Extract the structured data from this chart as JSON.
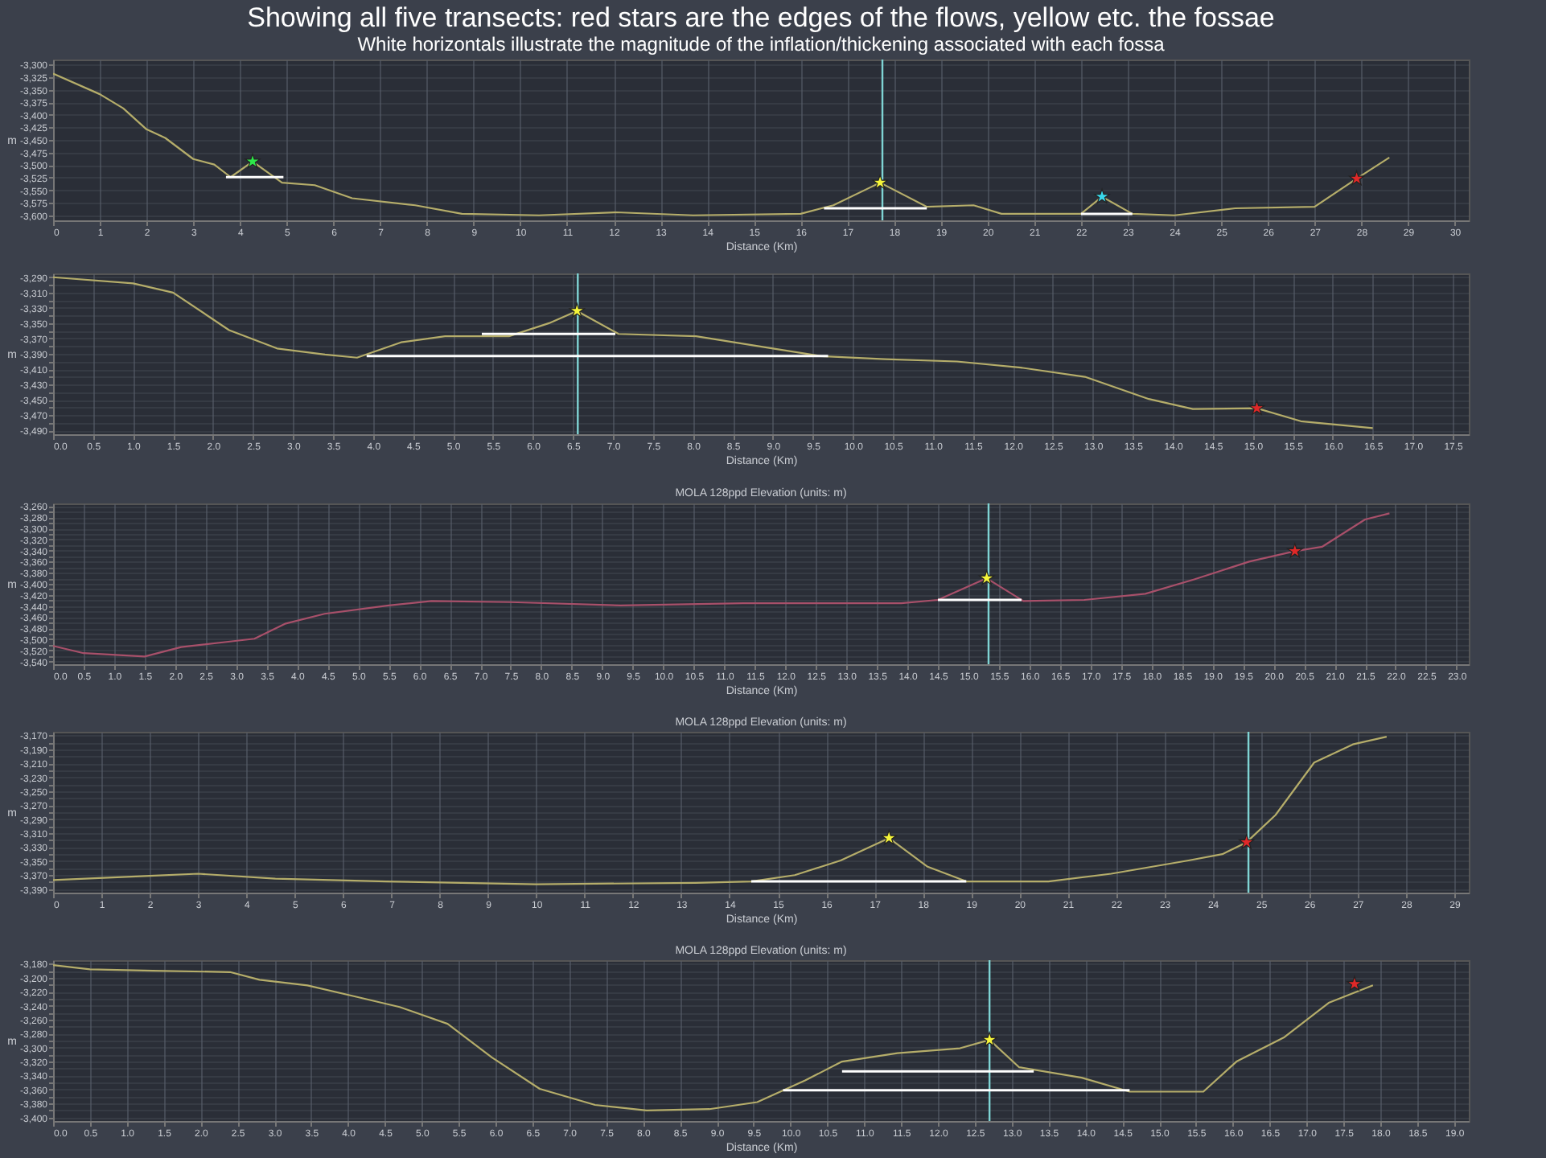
{
  "chart_data": [
    {
      "type": "line",
      "title": "Showing all five transects: red stars are the edges of the flows, yellow etc. the fossae",
      "subtitle": "White horizontals illustrate the magnitude of the inflation/thickening associated with each fossa",
      "xlabel": "Distance (Km)",
      "ylabel": "m",
      "grid": true,
      "xlim": [
        0,
        30.3
      ],
      "xticks": [
        0,
        1,
        2,
        3,
        4,
        5,
        6,
        7,
        8,
        9,
        10,
        11,
        12,
        13,
        14,
        15,
        16,
        17,
        18,
        19,
        20,
        21,
        22,
        23,
        24,
        25,
        26,
        27,
        28,
        29,
        30
      ],
      "ylim": [
        -3610,
        -3290
      ],
      "yticks": [
        {
          "value": -3300,
          "label": "-3,300"
        },
        {
          "value": -3325,
          "label": "-3,325"
        },
        {
          "value": -3350,
          "label": "-3,350"
        },
        {
          "value": -3375,
          "label": "-3,375"
        },
        {
          "value": -3400,
          "label": "-3,400"
        },
        {
          "value": -3425,
          "label": "-3,425"
        },
        {
          "value": -3450,
          "label": "-3,450"
        },
        {
          "value": -3475,
          "label": "-3,475"
        },
        {
          "value": -3500,
          "label": "-3,500"
        },
        {
          "value": -3525,
          "label": "-3,525"
        },
        {
          "value": -3550,
          "label": "-3,550"
        },
        {
          "value": -3575,
          "label": "-3,575"
        },
        {
          "value": -3600,
          "label": "-3,600"
        }
      ],
      "series": [
        {
          "type": "line",
          "color": "#b5ad6a",
          "marker": "none",
          "x": [
            0,
            1,
            1.5,
            2,
            2.4,
            3,
            3.45,
            3.8,
            4.27,
            4.9,
            5.6,
            6.4,
            7.75,
            8.75,
            10.4,
            12.05,
            13.7,
            16,
            16.7,
            17.7,
            18.7,
            19.7,
            20.3,
            22,
            22.45,
            23.1,
            24,
            25.3,
            27,
            27.9,
            28.6
          ],
          "values": [
            -3318,
            -3359,
            -3387,
            -3429,
            -3446,
            -3488,
            -3499,
            -3524,
            -3493,
            -3535,
            -3540,
            -3566,
            -3580,
            -3597,
            -3600,
            -3594,
            -3600,
            -3597,
            -3580,
            -3535,
            -3583,
            -3580,
            -3597,
            -3597,
            -3563,
            -3597,
            -3600,
            -3586,
            -3583,
            -3527,
            -3485
          ]
        },
        {
          "type": "line",
          "color": "#ffffff",
          "marker": "none",
          "x": [
            3.7,
            4.93
          ],
          "values": [
            -3524,
            -3524
          ]
        },
        {
          "type": "line",
          "color": "#ffffff",
          "marker": "none",
          "x": [
            16.5,
            18.7
          ],
          "values": [
            -3586,
            -3586
          ]
        },
        {
          "type": "line",
          "color": "#ffffff",
          "marker": "none",
          "x": [
            22,
            23.1
          ],
          "values": [
            -3597,
            -3597
          ]
        },
        {
          "type": "scatter",
          "marker": "star",
          "x": [
            4.27,
            17.7,
            22.45,
            27.9
          ],
          "values": [
            -3493,
            -3535,
            -3563,
            -3527
          ],
          "colors": [
            "#2ee84a",
            "#f5f53a",
            "#3ad8ea",
            "#e02828"
          ]
        }
      ],
      "ref_lines": [
        {
          "axis": "x",
          "value": 17.75,
          "color": "#7fd4d4"
        }
      ]
    },
    {
      "type": "line",
      "xlabel": "Distance (Km)",
      "ylabel": "m",
      "grid": true,
      "xlim": [
        0,
        17.7
      ],
      "xticks": [
        {
          "value": 0,
          "label": "0.0"
        },
        0.5,
        {
          "value": 1,
          "label": "1.0"
        },
        1.5,
        {
          "value": 2,
          "label": "2.0"
        },
        2.5,
        {
          "value": 3,
          "label": "3.0"
        },
        3.5,
        {
          "value": 4,
          "label": "4.0"
        },
        4.5,
        {
          "value": 5,
          "label": "5.0"
        },
        5.5,
        {
          "value": 6,
          "label": "6.0"
        },
        6.5,
        {
          "value": 7,
          "label": "7.0"
        },
        7.5,
        {
          "value": 8,
          "label": "8.0"
        },
        8.5,
        {
          "value": 9,
          "label": "9.0"
        },
        9.5,
        {
          "value": 10,
          "label": "10.0"
        },
        10.5,
        {
          "value": 11,
          "label": "11.0"
        },
        11.5,
        {
          "value": 12,
          "label": "12.0"
        },
        12.5,
        {
          "value": 13,
          "label": "13.0"
        },
        13.5,
        {
          "value": 14,
          "label": "14.0"
        },
        14.5,
        {
          "value": 15,
          "label": "15.0"
        },
        15.5,
        {
          "value": 16,
          "label": "16.0"
        },
        16.5,
        {
          "value": 17,
          "label": "17.0"
        },
        17.5
      ],
      "ylim": [
        -3495,
        -3285
      ],
      "yticks": [
        {
          "value": -3290,
          "label": "-3,290"
        },
        {
          "value": -3300,
          "label": null
        },
        {
          "value": -3310,
          "label": "-3,310"
        },
        {
          "value": -3320,
          "label": null
        },
        {
          "value": -3330,
          "label": "-3,330"
        },
        {
          "value": -3340,
          "label": null
        },
        {
          "value": -3350,
          "label": "-3,350"
        },
        {
          "value": -3360,
          "label": null
        },
        {
          "value": -3370,
          "label": "-3,370"
        },
        {
          "value": -3380,
          "label": null
        },
        {
          "value": -3390,
          "label": "-3,390"
        },
        {
          "value": -3400,
          "label": null
        },
        {
          "value": -3410,
          "label": "-3,410"
        },
        {
          "value": -3420,
          "label": null
        },
        {
          "value": -3430,
          "label": "-3,430"
        },
        {
          "value": -3440,
          "label": null
        },
        {
          "value": -3450,
          "label": "-3,450"
        },
        {
          "value": -3460,
          "label": null
        },
        {
          "value": -3470,
          "label": "-3,470"
        },
        {
          "value": -3480,
          "label": null
        },
        {
          "value": -3490,
          "label": "-3,490"
        }
      ],
      "series": [
        {
          "type": "line",
          "color": "#b5ad6a",
          "marker": "none",
          "x": [
            0,
            1,
            1.5,
            2.2,
            2.8,
            3.4,
            3.8,
            4.35,
            4.9,
            5.7,
            6.2,
            6.55,
            7.07,
            8.04,
            9,
            9.6,
            10.4,
            11.3,
            12.1,
            12.9,
            13.7,
            14.25,
            15.05,
            15.6,
            16.5
          ],
          "values": [
            -3290,
            -3298,
            -3310,
            -3359,
            -3383,
            -3391,
            -3395,
            -3375,
            -3367,
            -3367,
            -3350,
            -3334,
            -3364,
            -3367,
            -3383,
            -3393,
            -3397,
            -3400,
            -3408,
            -3420,
            -3449,
            -3462,
            -3461,
            -3478,
            -3487
          ]
        },
        {
          "type": "line",
          "color": "#ffffff",
          "marker": "none",
          "x": [
            5.36,
            7.03
          ],
          "values": [
            -3364,
            -3364
          ]
        },
        {
          "type": "line",
          "color": "#ffffff",
          "marker": "none",
          "x": [
            3.92,
            9.69
          ],
          "values": [
            -3393,
            -3393
          ]
        },
        {
          "type": "scatter",
          "marker": "star",
          "x": [
            6.55,
            15.05
          ],
          "values": [
            -3334,
            -3461
          ],
          "colors": [
            "#f5f53a",
            "#e02828"
          ]
        }
      ],
      "ref_lines": [
        {
          "axis": "x",
          "value": 6.56,
          "color": "#7fd4d4"
        }
      ]
    },
    {
      "type": "line",
      "title": "MOLA 128ppd Elevation (units: m)",
      "xlabel": "Distance (Km)",
      "ylabel": "m",
      "grid": true,
      "xlim": [
        0,
        23.2
      ],
      "xticks": [
        {
          "value": 0,
          "label": "0.0"
        },
        0.5,
        {
          "value": 1,
          "label": "1.0"
        },
        1.5,
        {
          "value": 2,
          "label": "2.0"
        },
        2.5,
        {
          "value": 3,
          "label": "3.0"
        },
        3.5,
        {
          "value": 4,
          "label": "4.0"
        },
        4.5,
        {
          "value": 5,
          "label": "5.0"
        },
        5.5,
        {
          "value": 6,
          "label": "6.0"
        },
        6.5,
        {
          "value": 7,
          "label": "7.0"
        },
        7.5,
        {
          "value": 8,
          "label": "8.0"
        },
        8.5,
        {
          "value": 9,
          "label": "9.0"
        },
        9.5,
        {
          "value": 10,
          "label": "10.0"
        },
        10.5,
        {
          "value": 11,
          "label": "11.0"
        },
        11.5,
        {
          "value": 12,
          "label": "12.0"
        },
        12.5,
        {
          "value": 13,
          "label": "13.0"
        },
        13.5,
        {
          "value": 14,
          "label": "14.0"
        },
        14.5,
        {
          "value": 15,
          "label": "15.0"
        },
        15.5,
        {
          "value": 16,
          "label": "16.0"
        },
        16.5,
        {
          "value": 17,
          "label": "17.0"
        },
        17.5,
        {
          "value": 18,
          "label": "18.0"
        },
        18.5,
        {
          "value": 19,
          "label": "19.0"
        },
        19.5,
        {
          "value": 20,
          "label": "20.0"
        },
        20.5,
        {
          "value": 21,
          "label": "21.0"
        },
        21.5,
        {
          "value": 22,
          "label": "22.0"
        },
        22.5,
        {
          "value": 23,
          "label": "23.0"
        }
      ],
      "ylim": [
        -3545,
        -3255
      ],
      "yticks": [
        {
          "value": -3260,
          "label": "-3,260"
        },
        {
          "value": -3270,
          "label": null
        },
        {
          "value": -3280,
          "label": "-3,280"
        },
        {
          "value": -3290,
          "label": null
        },
        {
          "value": -3300,
          "label": "-3,300"
        },
        {
          "value": -3310,
          "label": null
        },
        {
          "value": -3320,
          "label": "-3,320"
        },
        {
          "value": -3330,
          "label": null
        },
        {
          "value": -3340,
          "label": "-3,340"
        },
        {
          "value": -3350,
          "label": null
        },
        {
          "value": -3360,
          "label": "-3,360"
        },
        {
          "value": -3370,
          "label": null
        },
        {
          "value": -3380,
          "label": "-3,380"
        },
        {
          "value": -3390,
          "label": null
        },
        {
          "value": -3400,
          "label": "-3,400"
        },
        {
          "value": -3410,
          "label": null
        },
        {
          "value": -3420,
          "label": "-3,420"
        },
        {
          "value": -3430,
          "label": null
        },
        {
          "value": -3440,
          "label": "-3,440"
        },
        {
          "value": -3450,
          "label": null
        },
        {
          "value": -3460,
          "label": "-3,460"
        },
        {
          "value": -3470,
          "label": null
        },
        {
          "value": -3480,
          "label": "-3,480"
        },
        {
          "value": -3490,
          "label": null
        },
        {
          "value": -3500,
          "label": "-3,500"
        },
        {
          "value": -3510,
          "label": null
        },
        {
          "value": -3520,
          "label": "-3,520"
        },
        {
          "value": -3530,
          "label": null
        },
        {
          "value": -3540,
          "label": "-3,540"
        }
      ],
      "series": [
        {
          "type": "line",
          "color": "#a8506a",
          "marker": "none",
          "x": [
            0,
            0.5,
            1.5,
            2.1,
            2.9,
            3.3,
            3.8,
            4.45,
            5.5,
            6.2,
            7.5,
            9.3,
            11.3,
            12.6,
            13.9,
            14.5,
            15.3,
            15.9,
            16.9,
            17.9,
            18.7,
            19.6,
            20.35,
            20.8,
            21.5,
            21.9
          ],
          "values": [
            -3512,
            -3525,
            -3531,
            -3514,
            -3504,
            -3499,
            -3472,
            -3454,
            -3439,
            -3431,
            -3433,
            -3439,
            -3435,
            -3435,
            -3435,
            -3429,
            -3390,
            -3431,
            -3429,
            -3418,
            -3392,
            -3360,
            -3341,
            -3333,
            -3284,
            -3273
          ]
        },
        {
          "type": "line",
          "color": "#ffffff",
          "marker": "none",
          "x": [
            14.5,
            15.87
          ],
          "values": [
            -3429,
            -3429
          ]
        },
        {
          "type": "scatter",
          "marker": "star",
          "x": [
            15.3,
            20.35
          ],
          "values": [
            -3390,
            -3341
          ],
          "colors": [
            "#f5f53a",
            "#e02828"
          ]
        }
      ],
      "ref_lines": [
        {
          "axis": "x",
          "value": 15.33,
          "color": "#7fd4d4"
        }
      ]
    },
    {
      "type": "line",
      "title": "MOLA 128ppd Elevation (units: m)",
      "xlabel": "Distance (Km)",
      "ylabel": "m",
      "grid": true,
      "xlim": [
        0,
        29.3
      ],
      "xticks": [
        0,
        1,
        2,
        3,
        4,
        5,
        6,
        7,
        8,
        9,
        10,
        11,
        12,
        13,
        14,
        15,
        16,
        17,
        18,
        19,
        20,
        21,
        22,
        23,
        24,
        25,
        26,
        27,
        28,
        29
      ],
      "ylim": [
        -3395,
        -3165
      ],
      "yticks": [
        {
          "value": -3170,
          "label": "-3,170"
        },
        {
          "value": -3180,
          "label": null
        },
        {
          "value": -3190,
          "label": "-3,190"
        },
        {
          "value": -3200,
          "label": null
        },
        {
          "value": -3210,
          "label": "-3,210"
        },
        {
          "value": -3220,
          "label": null
        },
        {
          "value": -3230,
          "label": "-3,230"
        },
        {
          "value": -3240,
          "label": null
        },
        {
          "value": -3250,
          "label": "-3,250"
        },
        {
          "value": -3260,
          "label": null
        },
        {
          "value": -3270,
          "label": "-3,270"
        },
        {
          "value": -3280,
          "label": null
        },
        {
          "value": -3290,
          "label": "-3,290"
        },
        {
          "value": -3300,
          "label": null
        },
        {
          "value": -3310,
          "label": "-3,310"
        },
        {
          "value": -3320,
          "label": null
        },
        {
          "value": -3330,
          "label": "-3,330"
        },
        {
          "value": -3340,
          "label": null
        },
        {
          "value": -3350,
          "label": "-3,350"
        },
        {
          "value": -3360,
          "label": null
        },
        {
          "value": -3370,
          "label": "-3,370"
        },
        {
          "value": -3380,
          "label": null
        },
        {
          "value": -3390,
          "label": "-3,390"
        }
      ],
      "series": [
        {
          "type": "line",
          "color": "#b5ad6a",
          "marker": "none",
          "x": [
            0,
            2,
            3,
            4.6,
            6.9,
            10,
            13.3,
            14.45,
            15.35,
            16.3,
            17.3,
            18.1,
            18.9,
            20.6,
            21.9,
            23.5,
            24.2,
            24.7,
            25.3,
            26.1,
            26.9,
            27.6
          ],
          "values": [
            -3377,
            -3371,
            -3368,
            -3375,
            -3379,
            -3383,
            -3381,
            -3379,
            -3370,
            -3349,
            -3317,
            -3358,
            -3379,
            -3379,
            -3368,
            -3349,
            -3340,
            -3323,
            -3284,
            -3209,
            -3183,
            -3172
          ]
        },
        {
          "type": "line",
          "color": "#ffffff",
          "marker": "none",
          "x": [
            14.45,
            18.9
          ],
          "values": [
            -3379,
            -3379
          ]
        },
        {
          "type": "scatter",
          "marker": "star",
          "x": [
            17.3,
            24.7
          ],
          "values": [
            -3317,
            -3323
          ],
          "colors": [
            "#f5f53a",
            "#e02828"
          ]
        }
      ],
      "ref_lines": [
        {
          "axis": "x",
          "value": 24.74,
          "color": "#7fd4d4"
        }
      ]
    },
    {
      "type": "line",
      "title": "MOLA 128ppd Elevation (units: m)",
      "xlabel": "Distance (Km)",
      "ylabel": "m",
      "grid": true,
      "xlim": [
        0,
        19.2
      ],
      "xticks": [
        {
          "value": 0,
          "label": "0.0"
        },
        0.5,
        {
          "value": 1,
          "label": "1.0"
        },
        1.5,
        {
          "value": 2,
          "label": "2.0"
        },
        2.5,
        {
          "value": 3,
          "label": "3.0"
        },
        3.5,
        {
          "value": 4,
          "label": "4.0"
        },
        4.5,
        {
          "value": 5,
          "label": "5.0"
        },
        5.5,
        {
          "value": 6,
          "label": "6.0"
        },
        6.5,
        {
          "value": 7,
          "label": "7.0"
        },
        7.5,
        {
          "value": 8,
          "label": "8.0"
        },
        8.5,
        {
          "value": 9,
          "label": "9.0"
        },
        9.5,
        {
          "value": 10,
          "label": "10.0"
        },
        10.5,
        {
          "value": 11,
          "label": "11.0"
        },
        11.5,
        {
          "value": 12,
          "label": "12.0"
        },
        12.5,
        {
          "value": 13,
          "label": "13.0"
        },
        13.5,
        {
          "value": 14,
          "label": "14.0"
        },
        14.5,
        {
          "value": 15,
          "label": "15.0"
        },
        15.5,
        {
          "value": 16,
          "label": "16.0"
        },
        16.5,
        {
          "value": 17,
          "label": "17.0"
        },
        17.5,
        {
          "value": 18,
          "label": "18.0"
        },
        18.5,
        {
          "value": 19,
          "label": "19.0"
        }
      ],
      "ylim": [
        -3405,
        -3175
      ],
      "yticks": [
        {
          "value": -3180,
          "label": "-3,180"
        },
        {
          "value": -3190,
          "label": null
        },
        {
          "value": -3200,
          "label": "-3,200"
        },
        {
          "value": -3210,
          "label": null
        },
        {
          "value": -3220,
          "label": "-3,220"
        },
        {
          "value": -3230,
          "label": null
        },
        {
          "value": -3240,
          "label": "-3,240"
        },
        {
          "value": -3250,
          "label": null
        },
        {
          "value": -3260,
          "label": "-3,260"
        },
        {
          "value": -3270,
          "label": null
        },
        {
          "value": -3280,
          "label": "-3,280"
        },
        {
          "value": -3290,
          "label": null
        },
        {
          "value": -3300,
          "label": "-3,300"
        },
        {
          "value": -3310,
          "label": null
        },
        {
          "value": -3320,
          "label": "-3,320"
        },
        {
          "value": -3330,
          "label": null
        },
        {
          "value": -3340,
          "label": "-3,340"
        },
        {
          "value": -3350,
          "label": null
        },
        {
          "value": -3360,
          "label": "-3,360"
        },
        {
          "value": -3370,
          "label": null
        },
        {
          "value": -3380,
          "label": "-3,380"
        },
        {
          "value": -3390,
          "label": null
        },
        {
          "value": -3400,
          "label": "-3,400"
        }
      ],
      "series": [
        {
          "type": "line",
          "color": "#b5ad6a",
          "marker": "none",
          "x": [
            0,
            0.5,
            1.35,
            2.4,
            2.8,
            3.45,
            4.1,
            4.7,
            5.35,
            5.95,
            6.6,
            7.35,
            8.05,
            8.9,
            9.55,
            10.2,
            10.7,
            11.45,
            12.3,
            12.7,
            13.1,
            13.95,
            14.6,
            15.6,
            16.05,
            16.7,
            17.3,
            17.9
          ],
          "values": [
            -3182,
            -3188,
            -3190,
            -3192,
            -3203,
            -3211,
            -3227,
            -3242,
            -3266,
            -3314,
            -3359,
            -3382,
            -3390,
            -3388,
            -3378,
            -3347,
            -3320,
            -3308,
            -3301,
            -3289,
            -3328,
            -3343,
            -3363,
            -3363,
            -3320,
            -3285,
            -3236,
            -3211
          ]
        },
        {
          "type": "line",
          "color": "#ffffff",
          "marker": "none",
          "x": [
            10.7,
            13.3
          ],
          "values": [
            -3334,
            -3334
          ]
        },
        {
          "type": "line",
          "color": "#ffffff",
          "marker": "none",
          "x": [
            9.9,
            14.6
          ],
          "values": [
            -3361,
            -3361
          ]
        },
        {
          "type": "scatter",
          "marker": "star",
          "x": [
            12.7,
            17.65
          ],
          "values": [
            -3289,
            -3209
          ],
          "colors": [
            "#f5f53a",
            "#e02828"
          ]
        }
      ],
      "ref_lines": [
        {
          "axis": "x",
          "value": 12.7,
          "color": "#7fd4d4"
        }
      ]
    }
  ]
}
